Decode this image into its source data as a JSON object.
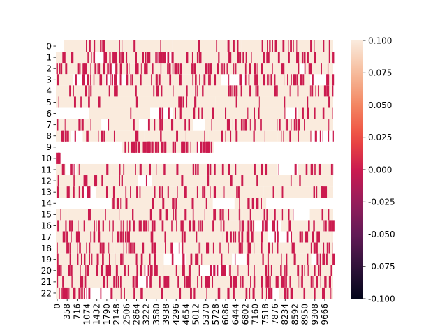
{
  "chart_data": {
    "type": "heatmap",
    "title": "",
    "xlabel": "",
    "ylabel": "",
    "rows": [
      "0",
      "1",
      "2",
      "3",
      "4",
      "5",
      "6",
      "7",
      "8",
      "9",
      "10",
      "11",
      "12",
      "13",
      "14",
      "15",
      "16",
      "17",
      "18",
      "19",
      "20",
      "21",
      "22"
    ],
    "x_tick_labels": [
      "0",
      "358",
      "716",
      "1074",
      "1432",
      "1790",
      "2148",
      "2506",
      "2864",
      "3222",
      "3580",
      "3938",
      "4296",
      "4654",
      "5012",
      "5370",
      "5728",
      "6086",
      "6444",
      "6802",
      "7160",
      "7518",
      "7876",
      "8234",
      "8592",
      "8950",
      "9308",
      "9666"
    ],
    "x_range": [
      0,
      10020
    ],
    "value_range": [
      -0.1,
      0.1
    ],
    "colorbar": {
      "ticks": [
        "0.100",
        "0.075",
        "0.050",
        "0.025",
        "0.000",
        "-0.025",
        "-0.050",
        "-0.075",
        "-0.100"
      ],
      "colormap": "rocket",
      "low_color": "#03051a",
      "mid_color": "#cb1b4f",
      "high_color": "#faebdd"
    },
    "cell_values": {
      "present_high": 0.1,
      "present_zero": 0.0,
      "missing": null
    },
    "grid": false,
    "legend": "colorbar-right"
  }
}
